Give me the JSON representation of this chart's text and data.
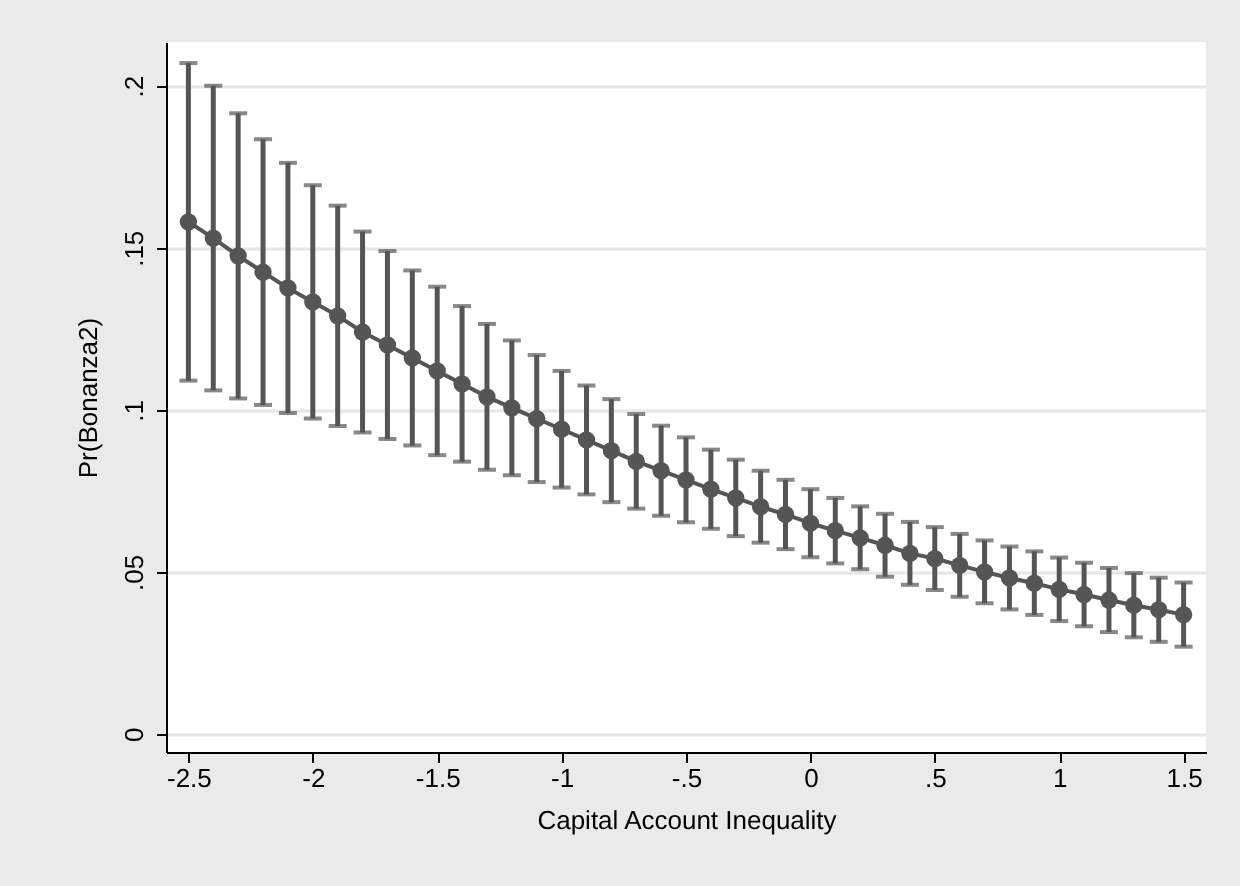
{
  "chart_data": {
    "type": "line",
    "xlabel": "Capital Account Inequality",
    "ylabel": "Pr(Bonanza2)",
    "x": [
      -2.5,
      -2.4,
      -2.3,
      -2.2,
      -2.1,
      -2.0,
      -1.9,
      -1.8,
      -1.7,
      -1.6,
      -1.5,
      -1.4,
      -1.3,
      -1.2,
      -1.1,
      -1.0,
      -0.9,
      -0.8,
      -0.7,
      -0.6,
      -0.5,
      -0.4,
      -0.3,
      -0.2,
      -0.1,
      0.0,
      0.1,
      0.2,
      0.3,
      0.4,
      0.5,
      0.6,
      0.7,
      0.8,
      0.9,
      1.0,
      1.1,
      1.2,
      1.3,
      1.4,
      1.5
    ],
    "series": [
      {
        "color": "#555555",
        "values": [
          0.158,
          0.153,
          0.1475,
          0.1425,
          0.1376,
          0.1333,
          0.129,
          0.124,
          0.12,
          0.116,
          0.112,
          0.108,
          0.104,
          0.1006,
          0.0973,
          0.094,
          0.0907,
          0.0874,
          0.0841,
          0.0812,
          0.0784,
          0.0755,
          0.0728,
          0.0701,
          0.0677,
          0.065,
          0.0627,
          0.0605,
          0.0582,
          0.0557,
          0.0541,
          0.052,
          0.05,
          0.0481,
          0.0465,
          0.0446,
          0.043,
          0.0413,
          0.0397,
          0.0383,
          0.0368
        ],
        "errors": [
          0.049,
          0.047,
          0.044,
          0.041,
          0.0386,
          0.036,
          0.034,
          0.031,
          0.029,
          0.027,
          0.026,
          0.024,
          0.0225,
          0.0208,
          0.0196,
          0.018,
          0.0168,
          0.0159,
          0.0146,
          0.0139,
          0.0131,
          0.0122,
          0.0118,
          0.0111,
          0.0107,
          0.0105,
          0.0101,
          0.0097,
          0.0097,
          0.0097,
          0.0097,
          0.0097,
          0.0097,
          0.0097,
          0.0098,
          0.0098,
          0.0098,
          0.0099,
          0.0099,
          0.0099,
          0.0099
        ]
      }
    ],
    "xlim": [
      -2.59,
      1.59
    ],
    "ylim": [
      -0.0056,
      0.2135
    ],
    "xticks": [
      {
        "value": -2.5,
        "label": "-2.5"
      },
      {
        "value": -2,
        "label": "-2"
      },
      {
        "value": -1.5,
        "label": "-1.5"
      },
      {
        "value": -1,
        "label": "-1"
      },
      {
        "value": -0.5,
        "label": "-.5"
      },
      {
        "value": 0,
        "label": "0"
      },
      {
        "value": 0.5,
        "label": ".5"
      },
      {
        "value": 1,
        "label": "1"
      },
      {
        "value": 1.5,
        "label": "1.5"
      }
    ],
    "yticks": [
      {
        "value": 0,
        "label": "0"
      },
      {
        "value": 0.05,
        "label": ".05"
      },
      {
        "value": 0.1,
        "label": ".1"
      },
      {
        "value": 0.15,
        "label": ".15"
      },
      {
        "value": 0.2,
        "label": ".2"
      }
    ],
    "grid": "y",
    "marker": "circle",
    "line_style": "solid"
  }
}
